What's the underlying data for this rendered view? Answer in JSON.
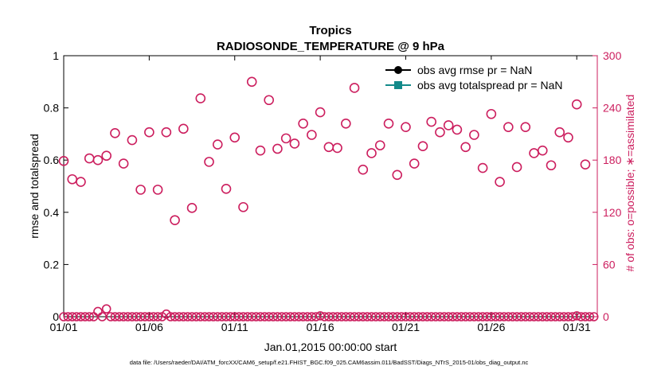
{
  "chart_data": {
    "type": "scatter",
    "title": "Tropics",
    "subtitle": "RADIOSONDE_TEMPERATURE @ 9 hPa",
    "xlabel": "Jan.01,2015 00:00:00 start",
    "ylabel_left": "rmse and totalspread",
    "ylabel_right": "# of obs: o=possible; ∗=assimilated",
    "x_ticks": [
      "01/01",
      "01/06",
      "01/11",
      "01/16",
      "01/21",
      "01/26",
      "01/31"
    ],
    "x_tick_days": [
      1,
      6,
      11,
      16,
      21,
      26,
      31
    ],
    "xlim": [
      1,
      32.2
    ],
    "ylim_left": [
      0,
      1
    ],
    "ylim_right": [
      0,
      300
    ],
    "left_ticks": [
      "0",
      "0.2",
      "0.4",
      "0.6",
      "0.8",
      "1"
    ],
    "left_tick_values": [
      0,
      0.2,
      0.4,
      0.6,
      0.8,
      1
    ],
    "right_ticks": [
      "0",
      "60",
      "120",
      "180",
      "240",
      "300"
    ],
    "right_tick_values": [
      0,
      60,
      120,
      180,
      240,
      300
    ],
    "colors": {
      "left_axis": "#000000",
      "right_axis": "#cc1e5e",
      "rmse": "#000000",
      "totalspread": "#138a8a",
      "possible": "#cc1e5e"
    },
    "legend": {
      "placement": "top-right",
      "entries": [
        {
          "label": "obs avg rmse pr = NaN",
          "color": "#000000",
          "marker": "circle"
        },
        {
          "label": "obs avg totalspread pr = NaN",
          "color": "#138a8a",
          "marker": "square"
        }
      ]
    },
    "series": [
      {
        "name": "# of obs possible",
        "axis": "right",
        "points": [
          {
            "day": 1.0,
            "value": 179
          },
          {
            "day": 1.5,
            "value": 158
          },
          {
            "day": 2.0,
            "value": 155
          },
          {
            "day": 2.5,
            "value": 182
          },
          {
            "day": 3.0,
            "value": 180
          },
          {
            "day": 3.5,
            "value": 185
          },
          {
            "day": 4.0,
            "value": 211
          },
          {
            "day": 4.5,
            "value": 176
          },
          {
            "day": 5.0,
            "value": 203
          },
          {
            "day": 5.5,
            "value": 146
          },
          {
            "day": 6.0,
            "value": 212
          },
          {
            "day": 6.5,
            "value": 146
          },
          {
            "day": 7.0,
            "value": 212
          },
          {
            "day": 7.5,
            "value": 111
          },
          {
            "day": 8.0,
            "value": 216
          },
          {
            "day": 8.5,
            "value": 125
          },
          {
            "day": 9.0,
            "value": 251
          },
          {
            "day": 9.5,
            "value": 178
          },
          {
            "day": 10.0,
            "value": 198
          },
          {
            "day": 10.5,
            "value": 147
          },
          {
            "day": 11.0,
            "value": 206
          },
          {
            "day": 11.5,
            "value": 126
          },
          {
            "day": 12.0,
            "value": 270
          },
          {
            "day": 12.5,
            "value": 191
          },
          {
            "day": 13.0,
            "value": 249
          },
          {
            "day": 13.5,
            "value": 193
          },
          {
            "day": 14.0,
            "value": 205
          },
          {
            "day": 14.5,
            "value": 199
          },
          {
            "day": 15.0,
            "value": 222
          },
          {
            "day": 15.5,
            "value": 209
          },
          {
            "day": 16.0,
            "value": 235
          },
          {
            "day": 16.5,
            "value": 195
          },
          {
            "day": 17.0,
            "value": 194
          },
          {
            "day": 17.5,
            "value": 222
          },
          {
            "day": 18.0,
            "value": 263
          },
          {
            "day": 18.5,
            "value": 169
          },
          {
            "day": 19.0,
            "value": 188
          },
          {
            "day": 19.5,
            "value": 197
          },
          {
            "day": 20.0,
            "value": 222
          },
          {
            "day": 20.5,
            "value": 163
          },
          {
            "day": 21.0,
            "value": 218
          },
          {
            "day": 21.5,
            "value": 176
          },
          {
            "day": 22.0,
            "value": 196
          },
          {
            "day": 22.5,
            "value": 224
          },
          {
            "day": 23.0,
            "value": 212
          },
          {
            "day": 23.5,
            "value": 220
          },
          {
            "day": 24.0,
            "value": 215
          },
          {
            "day": 24.5,
            "value": 195
          },
          {
            "day": 25.0,
            "value": 209
          },
          {
            "day": 25.5,
            "value": 171
          },
          {
            "day": 26.0,
            "value": 233
          },
          {
            "day": 26.5,
            "value": 155
          },
          {
            "day": 27.0,
            "value": 218
          },
          {
            "day": 27.5,
            "value": 172
          },
          {
            "day": 28.0,
            "value": 218
          },
          {
            "day": 28.5,
            "value": 188
          },
          {
            "day": 29.0,
            "value": 191
          },
          {
            "day": 29.5,
            "value": 174
          },
          {
            "day": 30.0,
            "value": 212
          },
          {
            "day": 30.5,
            "value": 206
          },
          {
            "day": 31.0,
            "value": 244
          },
          {
            "day": 31.5,
            "value": 175
          }
        ]
      },
      {
        "name": "# of obs assimilated",
        "axis": "right",
        "points": [
          {
            "day": 1.0,
            "value": 0
          },
          {
            "day": 3.0,
            "value": 6
          },
          {
            "day": 3.5,
            "value": 9
          },
          {
            "day": 7.0,
            "value": 3
          },
          {
            "day": 16.0,
            "value": 1
          },
          {
            "day": 31.0,
            "value": 1
          }
        ],
        "note": "all other days assimilated = 0"
      }
    ],
    "footer": "data file: /Users/raeder/DAI/ATM_forcXX/CAM6_setup/f.e21.FHIST_BGC.f09_025.CAM6assim.011/BadSST/Diags_NTrS_2015-01/obs_diag_output.nc"
  }
}
